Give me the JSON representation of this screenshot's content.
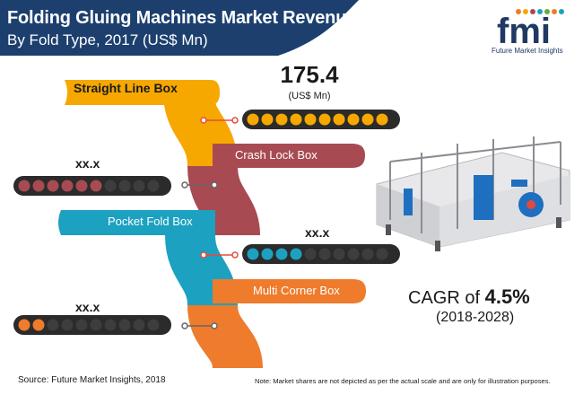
{
  "header": {
    "title": "Folding Gluing Machines Market Revenue",
    "subtitle": "By Fold Type, 2017 (US$ Mn)"
  },
  "logo": {
    "text": "fmi",
    "caption": "Future Market Insights"
  },
  "chart_data": {
    "type": "bar",
    "title": "Folding Gluing Machines Market Revenue",
    "subtitle": "By Fold Type, 2017 (US$ Mn)",
    "categories": [
      "Straight Line Box",
      "Crash Lock Box",
      "Pocket Fold Box",
      "Multi Corner Box"
    ],
    "series": [
      {
        "values": [
          175.4,
          null,
          null,
          null
        ],
        "labels": [
          "175.4",
          "xx.x",
          "xx.x",
          "xx.x"
        ],
        "filled_segments": [
          10,
          6,
          4,
          2
        ],
        "total_segments": 10
      }
    ],
    "unit_label": "(US$ Mn)",
    "colors": [
      "#f6a800",
      "#a84a52",
      "#1da1c0",
      "#ef7b2c"
    ],
    "empty_segment_color": "#3d3d3d"
  },
  "cagr": {
    "prefix": "CAGR of",
    "value": "4.5%",
    "period": "(2018-2028)"
  },
  "footer": {
    "source": "Source: Future Market Insights, 2018",
    "note": "Note: Market shares are not depicted as per the actual scale and are only for illustration purposes."
  },
  "colors": {
    "header_band": "#1c3f6e",
    "logo_blue": "#1f3864"
  }
}
